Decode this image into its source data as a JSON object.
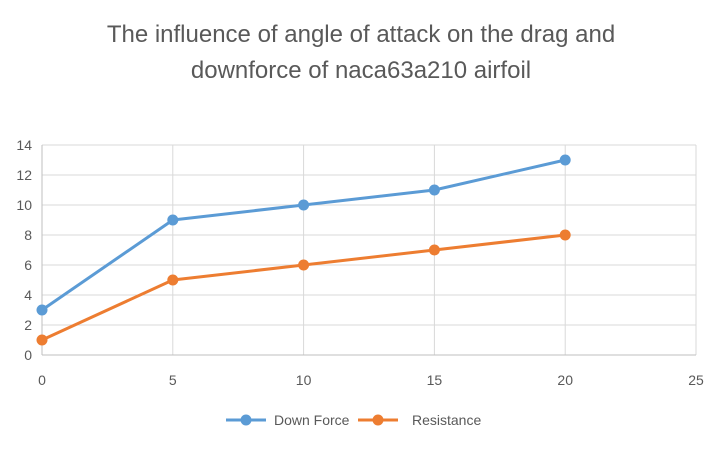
{
  "chart_data": {
    "type": "line",
    "title_lines": [
      "The influence of angle of attack on the drag and",
      "downforce of naca63a210 airfoil"
    ],
    "x": [
      0,
      5,
      10,
      15,
      20
    ],
    "series": [
      {
        "name": "Down Force",
        "values": [
          3,
          9,
          10,
          11,
          13
        ],
        "color": "#5b9bd5"
      },
      {
        "name": "Resistance",
        "values": [
          1,
          5,
          6,
          7,
          8
        ],
        "color": "#ed7d31"
      }
    ],
    "xlim": [
      0,
      25
    ],
    "ylim": [
      0,
      14
    ],
    "x_ticks": [
      0,
      5,
      10,
      15,
      20,
      25
    ],
    "y_ticks": [
      0,
      2,
      4,
      6,
      8,
      10,
      12,
      14
    ],
    "grid": true,
    "legend_position": "bottom",
    "colors": {
      "grid": "#d9d9d9",
      "axis_text": "#595959",
      "title": "#595959",
      "axis_line": "#bfbfbf"
    }
  }
}
